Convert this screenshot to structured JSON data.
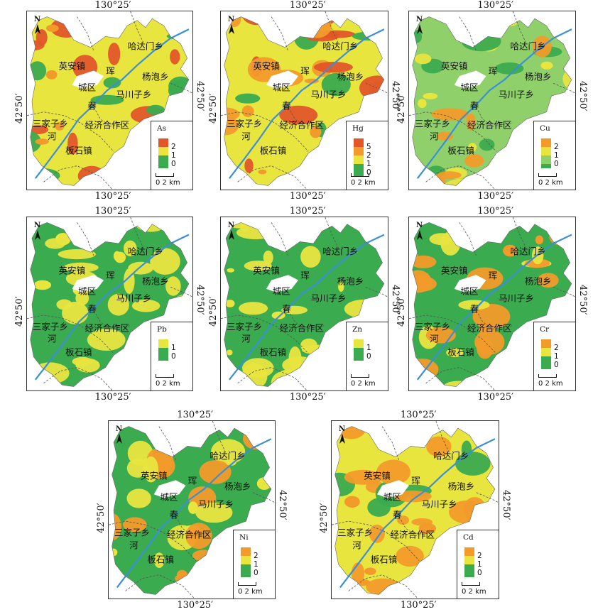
{
  "coords": {
    "top": "130°25′",
    "bottom": "130°25′",
    "left": "42°50′",
    "right": "42°50′"
  },
  "places": {
    "hadamen": "哈达门乡",
    "yingan": "英安镇",
    "hun": "珲",
    "yangpao": "杨泡乡",
    "chengqu": "城区",
    "machuanzi": "马川子乡",
    "chun": "春",
    "sanjiazi": "三家子乡",
    "jingji": "经济合作区",
    "he": "河",
    "banshi": "板石镇"
  },
  "north_label": "N",
  "scale": {
    "zero": "0",
    "label": "2 km"
  },
  "colors": {
    "green": "#3bab4f",
    "light_green": "#90d06a",
    "yellow": "#e8e53f",
    "orange": "#f29b2a",
    "red": "#e2562a",
    "river": "#3a8fd8",
    "urban": "#ffffff"
  },
  "maps": [
    {
      "element": "As",
      "legend": [
        "2",
        "1",
        "0"
      ],
      "dominant": "yellow",
      "hotspot": "orange"
    },
    {
      "element": "Hg",
      "legend": [
        "5",
        "2",
        "1",
        "0"
      ],
      "dominant": "yellow",
      "hotspot": "orange"
    },
    {
      "element": "Cu",
      "legend": [
        "2",
        "1",
        "0"
      ],
      "dominant": "light_green",
      "hotspot": "yellow"
    },
    {
      "element": "Pb",
      "legend": [
        "1",
        "0"
      ],
      "dominant": "green",
      "hotspot": "yellow"
    },
    {
      "element": "Zn",
      "legend": [
        "1",
        "0"
      ],
      "dominant": "green",
      "hotspot": "yellow"
    },
    {
      "element": "Cr",
      "legend": [
        "2",
        "1",
        "0"
      ],
      "dominant": "green",
      "hotspot": "orange"
    },
    {
      "element": "Ni",
      "legend": [
        "2",
        "1",
        "0"
      ],
      "dominant": "green",
      "hotspot": "yellow"
    },
    {
      "element": "Cd",
      "legend": [
        "2",
        "1",
        "0"
      ],
      "dominant": "yellow",
      "hotspot": "orange"
    }
  ]
}
